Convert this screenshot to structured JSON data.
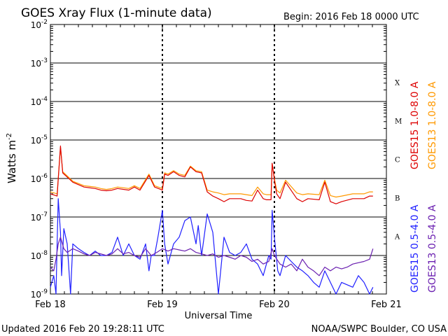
{
  "header": {
    "title": "GOES Xray Flux (1-minute data)",
    "begin": "Begin:  2016 Feb 18 0000 UTC"
  },
  "footer": {
    "updated": "Updated 2016 Feb 20 19:28:11 UTC",
    "credit": "NOAA/SWPC Boulder, CO USA"
  },
  "colors": {
    "goes15_long": "#dd0000",
    "goes13_long": "#ff9900",
    "goes15_short": "#1f1fff",
    "goes13_short": "#6a1fb0"
  },
  "chart_data": {
    "type": "line",
    "title": "GOES Xray Flux (1-minute data)",
    "xlabel": "Universal Time",
    "ylabel": "Watts m",
    "ylabel_superscript": "-2",
    "x_unit": "days since 2016 Feb 18 0000 UTC",
    "xlim": [
      0,
      3
    ],
    "x_ticks": [
      {
        "x": 0,
        "label": "Feb 18"
      },
      {
        "x": 1,
        "label": "Feb 19"
      },
      {
        "x": 2,
        "label": "Feb 20"
      },
      {
        "x": 3,
        "label": "Feb 21"
      }
    ],
    "y_scale": "log",
    "ylim": [
      1e-09,
      0.01
    ],
    "y_ticks": [
      {
        "exp": -2,
        "label": "10",
        "sup": "-2"
      },
      {
        "exp": -3,
        "label": "10",
        "sup": "-3"
      },
      {
        "exp": -4,
        "label": "10",
        "sup": "-4"
      },
      {
        "exp": -5,
        "label": "10",
        "sup": "-5"
      },
      {
        "exp": -6,
        "label": "10",
        "sup": "-6"
      },
      {
        "exp": -7,
        "label": "10",
        "sup": "-7"
      },
      {
        "exp": -8,
        "label": "10",
        "sup": "-8"
      },
      {
        "exp": -9,
        "label": "10",
        "sup": "-9"
      }
    ],
    "flare_classes": [
      {
        "label": "X",
        "level": 0.0001
      },
      {
        "label": "M",
        "level": 1e-05
      },
      {
        "label": "C",
        "level": 1e-06
      },
      {
        "label": "B",
        "level": 1e-07
      },
      {
        "label": "A",
        "level": 1e-08
      }
    ],
    "grid": "horizontal lines at each decade; dotted vertical lines at day boundaries",
    "legend_placement": "right, rotated vertical",
    "series": [
      {
        "name": "GOES15 1.0-8.0 A",
        "color": "#dd0000",
        "x": [
          0,
          0.06,
          0.09,
          0.11,
          0.2,
          0.3,
          0.4,
          0.45,
          0.5,
          0.55,
          0.6,
          0.7,
          0.75,
          0.8,
          0.88,
          0.93,
          1.0,
          1.02,
          1.05,
          1.1,
          1.15,
          1.2,
          1.25,
          1.3,
          1.35,
          1.4,
          1.45,
          1.5,
          1.55,
          1.6,
          1.7,
          1.75,
          1.8,
          1.85,
          1.9,
          1.93,
          1.97,
          1.98,
          2.0,
          2.02,
          2.05,
          2.1,
          2.2,
          2.25,
          2.3,
          2.4,
          2.45,
          2.5,
          2.55,
          2.6,
          2.7,
          2.8,
          2.85,
          2.88
        ],
        "y": [
          4e-07,
          3.5e-07,
          7e-06,
          1.4e-06,
          8e-07,
          6e-07,
          5.5e-07,
          5e-07,
          4.8e-07,
          5e-07,
          5.5e-07,
          5e-07,
          6e-07,
          5e-07,
          1.2e-06,
          6e-07,
          5e-07,
          1.3e-06,
          1.2e-06,
          1.5e-06,
          1.2e-06,
          1.1e-06,
          2e-06,
          1.5e-06,
          1.4e-06,
          4.5e-07,
          3.5e-07,
          3e-07,
          2.5e-07,
          3e-07,
          3e-07,
          2.7e-07,
          2.6e-07,
          5e-07,
          3e-07,
          2.8e-07,
          2.8e-07,
          2.5e-06,
          9e-07,
          4e-07,
          3e-07,
          8e-07,
          3e-07,
          2.5e-07,
          3e-07,
          2.8e-07,
          8e-07,
          2.5e-07,
          2.2e-07,
          2.5e-07,
          3e-07,
          3e-07,
          3.5e-07,
          3.5e-07
        ]
      },
      {
        "name": "GOES13 1.0-8.0 A",
        "color": "#ff9900",
        "x": [
          0,
          0.06,
          0.09,
          0.11,
          0.2,
          0.3,
          0.4,
          0.45,
          0.5,
          0.55,
          0.6,
          0.7,
          0.75,
          0.8,
          0.88,
          0.93,
          1.0,
          1.02,
          1.05,
          1.1,
          1.15,
          1.2,
          1.25,
          1.3,
          1.35,
          1.4,
          1.45,
          1.5,
          1.55,
          1.6,
          1.7,
          1.75,
          1.8,
          1.85,
          1.9,
          1.93,
          1.97,
          1.98,
          2.0,
          2.02,
          2.05,
          2.1,
          2.2,
          2.25,
          2.3,
          2.4,
          2.45,
          2.5,
          2.55,
          2.6,
          2.7,
          2.8,
          2.85,
          2.88
        ],
        "y": [
          4.5e-07,
          4e-07,
          6.5e-06,
          1.5e-06,
          8.5e-07,
          6.5e-07,
          6e-07,
          5.5e-07,
          5.2e-07,
          5.5e-07,
          6e-07,
          5.5e-07,
          6.5e-07,
          5.5e-07,
          1.3e-06,
          6.5e-07,
          5.5e-07,
          1.4e-06,
          1.3e-06,
          1.6e-06,
          1.3e-06,
          1.2e-06,
          2.1e-06,
          1.6e-06,
          1.5e-06,
          5e-07,
          4.5e-07,
          4.2e-07,
          3.8e-07,
          4e-07,
          4e-07,
          3.8e-07,
          3.6e-07,
          6e-07,
          4e-07,
          3.8e-07,
          3.8e-07,
          2.4e-06,
          1e-06,
          5e-07,
          4.2e-07,
          9e-07,
          4.2e-07,
          3.8e-07,
          4e-07,
          3.8e-07,
          9e-07,
          3.6e-07,
          3.3e-07,
          3.5e-07,
          4e-07,
          4e-07,
          4.5e-07,
          4.5e-07
        ]
      },
      {
        "name": "GOES15 0.5-4.0 A",
        "color": "#1f1fff",
        "x": [
          0,
          0.03,
          0.05,
          0.06,
          0.07,
          0.09,
          0.1,
          0.12,
          0.15,
          0.18,
          0.2,
          0.25,
          0.3,
          0.35,
          0.4,
          0.45,
          0.5,
          0.55,
          0.6,
          0.65,
          0.7,
          0.75,
          0.8,
          0.85,
          0.88,
          0.9,
          0.93,
          0.96,
          1.0,
          1.02,
          1.05,
          1.1,
          1.15,
          1.2,
          1.25,
          1.3,
          1.32,
          1.35,
          1.4,
          1.45,
          1.5,
          1.55,
          1.6,
          1.65,
          1.7,
          1.75,
          1.8,
          1.85,
          1.9,
          1.95,
          1.97,
          1.98,
          2.0,
          2.03,
          2.05,
          2.1,
          2.15,
          2.2,
          2.25,
          2.3,
          2.35,
          2.4,
          2.45,
          2.5,
          2.55,
          2.6,
          2.7,
          2.75,
          2.8,
          2.85,
          2.88
        ],
        "y": [
          1.5e-09,
          3e-09,
          1e-09,
          2e-08,
          3e-07,
          4e-08,
          3e-09,
          5e-08,
          2e-08,
          1e-09,
          2e-08,
          1.5e-08,
          1.2e-08,
          1e-08,
          1.3e-08,
          1e-08,
          1e-08,
          1.2e-08,
          3e-08,
          1e-08,
          2e-08,
          1e-08,
          8e-09,
          2e-08,
          4e-09,
          1e-08,
          1e-08,
          3e-08,
          1.5e-07,
          2e-08,
          6e-09,
          2e-08,
          3e-08,
          8e-08,
          1e-07,
          2e-08,
          6e-08,
          1e-08,
          1.2e-07,
          4e-08,
          1e-09,
          3e-08,
          1.2e-08,
          1e-08,
          1.2e-08,
          2e-08,
          8e-09,
          6e-09,
          3e-09,
          1e-08,
          8e-09,
          1.5e-07,
          3e-08,
          4e-09,
          3e-09,
          1e-08,
          7e-09,
          5e-09,
          4e-09,
          3e-09,
          2e-09,
          1.5e-09,
          4e-09,
          2e-09,
          1e-09,
          2e-09,
          1.5e-09,
          3e-09,
          2e-09,
          1e-09,
          1.5e-09
        ]
      },
      {
        "name": "GOES13 0.5-4.0 A",
        "color": "#6a1fb0",
        "x": [
          0,
          0.03,
          0.05,
          0.07,
          0.09,
          0.12,
          0.15,
          0.2,
          0.25,
          0.3,
          0.35,
          0.4,
          0.45,
          0.5,
          0.55,
          0.6,
          0.65,
          0.7,
          0.75,
          0.8,
          0.85,
          0.9,
          0.95,
          1.0,
          1.05,
          1.1,
          1.15,
          1.2,
          1.25,
          1.3,
          1.35,
          1.4,
          1.45,
          1.5,
          1.55,
          1.6,
          1.65,
          1.7,
          1.75,
          1.8,
          1.85,
          1.9,
          1.95,
          1.98,
          2.0,
          2.05,
          2.1,
          2.15,
          2.2,
          2.25,
          2.3,
          2.35,
          2.4,
          2.45,
          2.5,
          2.55,
          2.6,
          2.65,
          2.7,
          2.75,
          2.8,
          2.85,
          2.88
        ],
        "y": [
          5e-09,
          4e-09,
          8e-09,
          2e-08,
          3e-08,
          1.5e-08,
          1.2e-08,
          1.5e-08,
          1.3e-08,
          1.1e-08,
          1e-08,
          1.2e-08,
          1.1e-08,
          1e-08,
          1.1e-08,
          1.5e-08,
          1.1e-08,
          1.2e-08,
          1e-08,
          9e-09,
          1.5e-08,
          1e-08,
          1.2e-08,
          1.5e-08,
          1.3e-08,
          1.5e-08,
          1.4e-08,
          1.3e-08,
          1.5e-08,
          1.2e-08,
          1.1e-08,
          1e-08,
          1.1e-08,
          9e-09,
          1e-08,
          9e-09,
          8e-09,
          1e-08,
          9e-09,
          7e-09,
          8e-09,
          6e-09,
          7e-09,
          1.5e-08,
          1e-08,
          6e-09,
          5e-09,
          6e-09,
          4e-09,
          8e-09,
          5e-09,
          4e-09,
          3e-09,
          5e-09,
          4e-09,
          5e-09,
          4.5e-09,
          5e-09,
          6e-09,
          6.5e-09,
          7e-09,
          8e-09,
          1.5e-08
        ]
      }
    ]
  }
}
